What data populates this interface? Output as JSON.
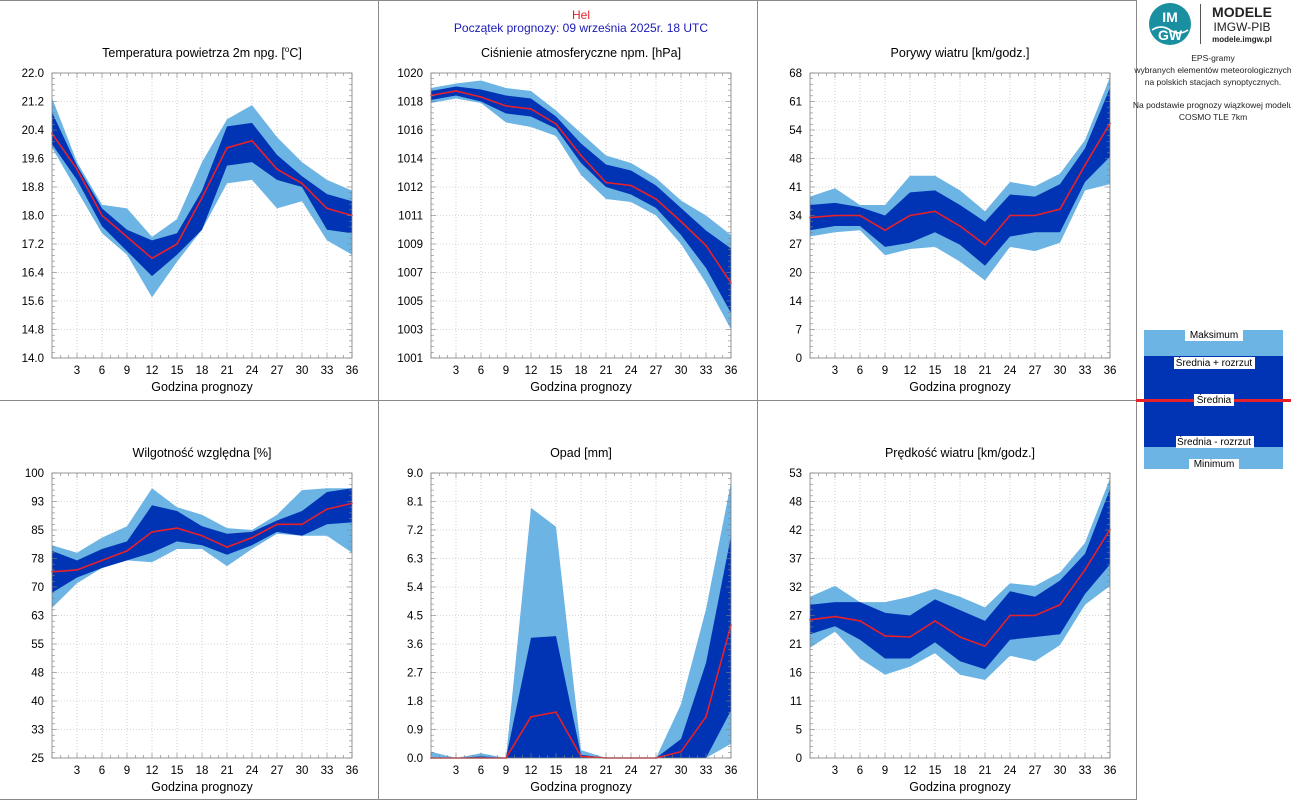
{
  "header": {
    "station": "Hel",
    "forecast_start": "Początek prognozy: 09 września 2025r. 18 UTC"
  },
  "logo": {
    "mark_top": "IM",
    "mark_bottom": "GW",
    "title": "MODELE",
    "subtitle": "IMGW-PIB",
    "url": "modele.imgw.pl"
  },
  "description": {
    "lines": [
      "EPS-gramy",
      "wybranych elementów meteorologicznych",
      "na polskich stacjach  synoptycznych.",
      "",
      "Na podstawie prognozy wiązkowej modelu",
      "COSMO TLE 7km"
    ]
  },
  "legend": {
    "max": "Maksimum",
    "mean_plus": "Średnia + rozrzut",
    "mean": "Średnia",
    "mean_minus": "Średnia - rozrzut",
    "min": "Minimum"
  },
  "colors": {
    "light_band": "#6cb4e4",
    "dark_band": "#0034b4",
    "mean_line": "#e8202a",
    "grid": "#b0b0b0",
    "station": "#e8202a",
    "forecast_start": "#1a1ab8",
    "logo_accent": "#1a8fa0"
  },
  "chart_data": [
    {
      "id": "temperature",
      "type": "area",
      "title": "Temperatura powietrza 2m npg. [°C]",
      "title_text": "Temperatura powietrza 2m npg. [",
      "title_sup": "o",
      "title_tail": "C]",
      "xlabel": "Godzina prognozy",
      "x": [
        0,
        3,
        6,
        9,
        12,
        15,
        18,
        21,
        24,
        27,
        30,
        33,
        36
      ],
      "x_ticks": [
        3,
        6,
        9,
        12,
        15,
        18,
        21,
        24,
        27,
        30,
        33,
        36
      ],
      "ylim": [
        14.0,
        22.0
      ],
      "y_ticks": [
        "14.0",
        "14.8",
        "15.6",
        "16.4",
        "17.2",
        "18.0",
        "18.8",
        "19.6",
        "20.4",
        "21.2",
        "22.0"
      ],
      "series": [
        {
          "name": "Maksimum",
          "values": [
            21.3,
            19.5,
            18.3,
            18.2,
            17.4,
            17.9,
            19.5,
            20.7,
            21.1,
            20.2,
            19.5,
            19.0,
            18.7
          ]
        },
        {
          "name": "Średnia + rozrzut",
          "values": [
            20.9,
            19.4,
            18.2,
            17.6,
            17.3,
            17.5,
            18.7,
            20.5,
            20.6,
            19.7,
            19.1,
            18.6,
            18.4
          ]
        },
        {
          "name": "Średnia",
          "values": [
            20.3,
            19.3,
            18.0,
            17.4,
            16.8,
            17.2,
            18.5,
            19.9,
            20.1,
            19.3,
            18.9,
            18.2,
            18.0
          ]
        },
        {
          "name": "Średnia - rozrzut",
          "values": [
            20.0,
            19.0,
            17.7,
            17.0,
            16.3,
            16.9,
            17.6,
            19.4,
            19.5,
            19.0,
            18.8,
            17.6,
            17.5
          ]
        },
        {
          "name": "Minimum",
          "values": [
            19.9,
            18.7,
            17.5,
            16.9,
            15.7,
            16.7,
            17.6,
            18.9,
            19.0,
            18.2,
            18.4,
            17.3,
            16.9
          ]
        }
      ]
    },
    {
      "id": "pressure",
      "type": "area",
      "title": "Ciśnienie atmosferyczne npm. [hPa]",
      "xlabel": "Godzina prognozy",
      "x": [
        0,
        3,
        6,
        9,
        12,
        15,
        18,
        21,
        24,
        27,
        30,
        33,
        36
      ],
      "x_ticks": [
        3,
        6,
        9,
        12,
        15,
        18,
        21,
        24,
        27,
        30,
        33,
        36
      ],
      "ylim": [
        1001.0,
        1020.0
      ],
      "y_ticks": [
        "1001",
        "1003",
        "1005",
        "1007",
        "1009",
        "1011",
        "1012",
        "1014",
        "1016",
        "1018",
        "1020"
      ],
      "series": [
        {
          "name": "Maksimum",
          "values": [
            1019.0,
            1019.3,
            1019.5,
            1019.0,
            1018.8,
            1017.5,
            1016.0,
            1014.5,
            1014.0,
            1013.0,
            1011.5,
            1010.5,
            1009.2
          ]
        },
        {
          "name": "Średnia + rozrzut",
          "values": [
            1018.8,
            1019.1,
            1018.9,
            1018.5,
            1018.3,
            1017.1,
            1015.3,
            1013.9,
            1013.5,
            1012.5,
            1011.0,
            1009.5,
            1008.3
          ]
        },
        {
          "name": "Średnia",
          "values": [
            1018.5,
            1018.8,
            1018.4,
            1017.8,
            1017.6,
            1016.6,
            1014.5,
            1012.7,
            1012.5,
            1011.6,
            1010.1,
            1008.5,
            1006.0
          ]
        },
        {
          "name": "Średnia - rozrzut",
          "values": [
            1018.2,
            1018.5,
            1018.1,
            1017.3,
            1017.1,
            1016.3,
            1014.0,
            1012.4,
            1011.9,
            1011.0,
            1009.2,
            1007.0,
            1004.0
          ]
        },
        {
          "name": "Minimum",
          "values": [
            1018.0,
            1018.3,
            1018.0,
            1016.7,
            1016.4,
            1015.8,
            1013.2,
            1011.6,
            1011.4,
            1010.5,
            1008.6,
            1006.0,
            1002.9
          ]
        }
      ]
    },
    {
      "id": "gusts",
      "type": "area",
      "title": "Porywy wiatru [km/godz.]",
      "xlabel": "Godzina prognozy",
      "x": [
        0,
        3,
        6,
        9,
        12,
        15,
        18,
        21,
        24,
        27,
        30,
        33,
        36
      ],
      "x_ticks": [
        3,
        6,
        9,
        12,
        15,
        18,
        21,
        24,
        27,
        30,
        33,
        36
      ],
      "ylim": [
        0,
        68
      ],
      "y_ticks": [
        "0",
        "7",
        "14",
        "20",
        "27",
        "34",
        "41",
        "48",
        "54",
        "61",
        "68"
      ],
      "series": [
        {
          "name": "Maksimum",
          "values": [
            38.5,
            40.5,
            36.5,
            36.5,
            43.5,
            43.5,
            40.0,
            35.0,
            42.0,
            41.0,
            44.0,
            52.0,
            67.0
          ]
        },
        {
          "name": "Średnia + rozrzut",
          "values": [
            36.5,
            37.0,
            36.0,
            34.0,
            39.5,
            40.0,
            36.5,
            32.5,
            39.0,
            38.5,
            41.5,
            50.0,
            64.5
          ]
        },
        {
          "name": "Średnia",
          "values": [
            33.5,
            34.0,
            34.0,
            30.5,
            34.0,
            35.0,
            31.5,
            27.0,
            34.0,
            34.0,
            35.5,
            46.0,
            56.0
          ]
        },
        {
          "name": "Średnia - rozrzut",
          "values": [
            30.5,
            31.5,
            31.5,
            26.5,
            27.5,
            30.0,
            27.0,
            22.0,
            29.0,
            30.0,
            30.0,
            42.0,
            48.0
          ]
        },
        {
          "name": "Minimum",
          "values": [
            29.0,
            30.0,
            30.5,
            24.5,
            26.0,
            26.5,
            23.0,
            18.5,
            26.5,
            25.5,
            27.5,
            40.0,
            41.5
          ]
        }
      ]
    },
    {
      "id": "humidity",
      "type": "area",
      "title": "Wilgotność względna [%]",
      "xlabel": "Godzina prognozy",
      "x": [
        0,
        3,
        6,
        9,
        12,
        15,
        18,
        21,
        24,
        27,
        30,
        33,
        36
      ],
      "x_ticks": [
        3,
        6,
        9,
        12,
        15,
        18,
        21,
        24,
        27,
        30,
        33,
        36
      ],
      "ylim": [
        25,
        100
      ],
      "y_ticks": [
        "25",
        "33",
        "40",
        "48",
        "55",
        "63",
        "70",
        "78",
        "85",
        "93",
        "100"
      ],
      "series": [
        {
          "name": "Maksimum",
          "values": [
            81.0,
            79.0,
            83.0,
            86.0,
            96.0,
            91.0,
            89.0,
            85.5,
            85.0,
            89.0,
            95.5,
            96.0,
            96.0
          ]
        },
        {
          "name": "Średnia + rozrzut",
          "values": [
            79.5,
            77.0,
            80.0,
            82.0,
            91.5,
            90.0,
            86.0,
            84.0,
            84.5,
            87.5,
            90.0,
            95.0,
            96.0
          ]
        },
        {
          "name": "Średnia",
          "values": [
            74.0,
            74.5,
            77.0,
            79.5,
            84.5,
            85.5,
            83.5,
            80.5,
            83.0,
            86.5,
            86.5,
            90.5,
            92.0
          ]
        },
        {
          "name": "Średnia - rozrzut",
          "values": [
            68.5,
            72.5,
            75.0,
            77.0,
            79.0,
            82.0,
            81.0,
            78.5,
            81.0,
            84.5,
            83.5,
            86.5,
            87.0
          ]
        },
        {
          "name": "Minimum",
          "values": [
            64.5,
            71.0,
            75.0,
            77.0,
            76.5,
            80.0,
            80.0,
            75.5,
            80.0,
            84.0,
            83.5,
            83.5,
            79.0
          ]
        }
      ]
    },
    {
      "id": "precipitation",
      "type": "area",
      "title": "Opad [mm]",
      "xlabel": "Godzina prognozy",
      "x": [
        0,
        3,
        6,
        9,
        12,
        15,
        18,
        21,
        24,
        27,
        30,
        33,
        36
      ],
      "x_ticks": [
        3,
        6,
        9,
        12,
        15,
        18,
        21,
        24,
        27,
        30,
        33,
        36
      ],
      "ylim": [
        0,
        9.0
      ],
      "y_ticks": [
        "0.0",
        "0.9",
        "1.8",
        "2.7",
        "3.6",
        "4.5",
        "5.4",
        "6.3",
        "7.2",
        "8.1",
        "9.0"
      ],
      "series": [
        {
          "name": "Maksimum",
          "values": [
            0.2,
            0.0,
            0.15,
            0.0,
            7.9,
            7.3,
            0.25,
            0.0,
            0.0,
            0.0,
            1.7,
            4.7,
            8.7
          ]
        },
        {
          "name": "Średnia + rozrzut",
          "values": [
            0.02,
            0.0,
            0.05,
            0.0,
            3.8,
            3.85,
            0.1,
            0.0,
            0.0,
            0.0,
            0.6,
            3.0,
            7.0
          ]
        },
        {
          "name": "Średnia",
          "values": [
            0.0,
            0.0,
            0.0,
            0.0,
            1.3,
            1.45,
            0.05,
            0.0,
            0.0,
            0.0,
            0.2,
            1.3,
            4.2
          ]
        },
        {
          "name": "Średnia - rozrzut",
          "values": [
            0.0,
            0.0,
            0.0,
            0.0,
            0.0,
            0.0,
            0.0,
            0.0,
            0.0,
            0.0,
            0.0,
            0.0,
            1.5
          ]
        },
        {
          "name": "Minimum",
          "values": [
            0.0,
            0.0,
            0.0,
            0.0,
            0.0,
            0.0,
            0.0,
            0.0,
            0.0,
            0.0,
            0.0,
            0.0,
            0.45
          ]
        }
      ]
    },
    {
      "id": "wind_speed",
      "type": "area",
      "title": "Prędkość wiatru [km/godz.]",
      "xlabel": "Godzina prognozy",
      "x": [
        0,
        3,
        6,
        9,
        12,
        15,
        18,
        21,
        24,
        27,
        30,
        33,
        36
      ],
      "x_ticks": [
        3,
        6,
        9,
        12,
        15,
        18,
        21,
        24,
        27,
        30,
        33,
        36
      ],
      "ylim": [
        0,
        53
      ],
      "y_ticks": [
        "0",
        "5",
        "11",
        "16",
        "21",
        "27",
        "32",
        "37",
        "42",
        "48",
        "53"
      ],
      "series": [
        {
          "name": "Maksimum",
          "values": [
            30.0,
            32.0,
            29.0,
            29.0,
            30.0,
            31.5,
            30.0,
            28.0,
            32.5,
            32.0,
            34.5,
            40.0,
            52.0
          ]
        },
        {
          "name": "Średnia + rozrzut",
          "values": [
            28.5,
            29.0,
            29.0,
            27.0,
            26.5,
            29.5,
            27.5,
            25.5,
            31.0,
            30.0,
            33.0,
            38.0,
            50.0
          ]
        },
        {
          "name": "Średnia",
          "values": [
            25.7,
            26.3,
            25.5,
            22.7,
            22.5,
            25.5,
            22.5,
            20.8,
            26.5,
            26.5,
            28.5,
            35.0,
            42.5
          ]
        },
        {
          "name": "Średnia - rozrzut",
          "values": [
            23.0,
            24.5,
            22.0,
            18.5,
            18.5,
            21.5,
            18.0,
            16.5,
            22.0,
            22.5,
            23.0,
            30.5,
            36.0
          ]
        },
        {
          "name": "Minimum",
          "values": [
            20.5,
            23.5,
            18.5,
            15.5,
            17.0,
            19.5,
            15.5,
            14.5,
            19.0,
            18.0,
            21.0,
            28.5,
            32.0
          ]
        }
      ]
    }
  ]
}
